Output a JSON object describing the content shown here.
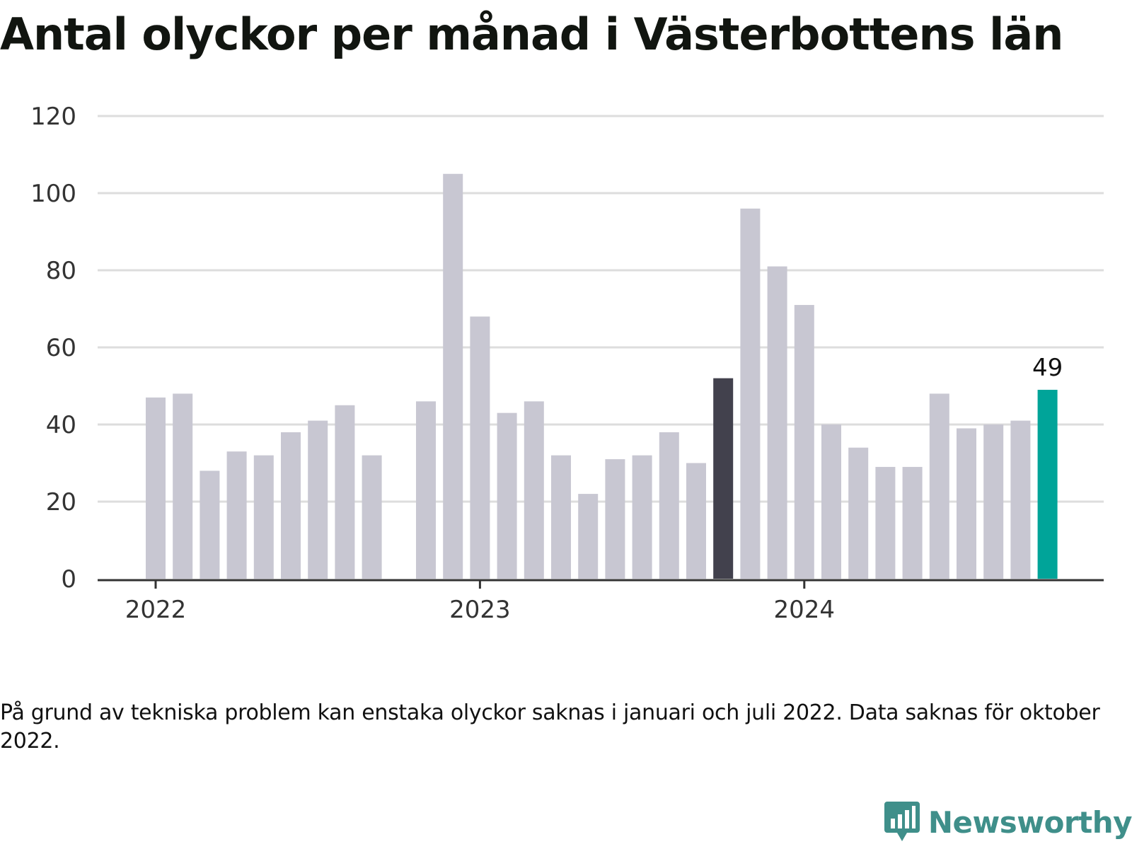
{
  "title": "Antal olyckor per månad i Västerbottens län",
  "note": "På grund av tekniska problem kan enstaka olyckor saknas i januari och juli 2022. Data saknas för oktober 2022.",
  "logo": {
    "text": "Newsworthy",
    "icon": "newsworthy-chart-bubble-icon",
    "color": "#3f8f8a"
  },
  "colors": {
    "bar": "#c8c7d2",
    "highlight_dark": "#42414d",
    "highlight_accent": "#00a499",
    "grid": "#dddddd",
    "axis": "#333333"
  },
  "chart_data": {
    "type": "bar",
    "title": "Antal olyckor per månad i Västerbottens län",
    "xlabel": "",
    "ylabel": "",
    "ylim": [
      0,
      120
    ],
    "yticks": [
      0,
      20,
      40,
      60,
      80,
      100,
      120
    ],
    "xticks": [
      {
        "label": "2022",
        "category": "2022-01"
      },
      {
        "label": "2023",
        "category": "2023-01"
      },
      {
        "label": "2024",
        "category": "2024-01"
      }
    ],
    "grid": true,
    "legend": "none",
    "categories": [
      "2022-01",
      "2022-02",
      "2022-03",
      "2022-04",
      "2022-05",
      "2022-06",
      "2022-07",
      "2022-08",
      "2022-09",
      "2022-10",
      "2022-11",
      "2022-12",
      "2023-01",
      "2023-02",
      "2023-03",
      "2023-04",
      "2023-05",
      "2023-06",
      "2023-07",
      "2023-08",
      "2023-09",
      "2023-10",
      "2023-11",
      "2023-12",
      "2024-01",
      "2024-02",
      "2024-03",
      "2024-04",
      "2024-05",
      "2024-06",
      "2024-07",
      "2024-08",
      "2024-09",
      "2024-10"
    ],
    "values": [
      47,
      48,
      28,
      33,
      32,
      38,
      41,
      45,
      32,
      null,
      46,
      105,
      68,
      43,
      46,
      32,
      22,
      31,
      32,
      38,
      30,
      52,
      96,
      81,
      71,
      40,
      34,
      29,
      29,
      48,
      39,
      40,
      41,
      49
    ],
    "highlights": [
      {
        "category": "2023-10",
        "color": "#42414d"
      },
      {
        "category": "2024-10",
        "color": "#00a499",
        "label": "49"
      }
    ]
  }
}
